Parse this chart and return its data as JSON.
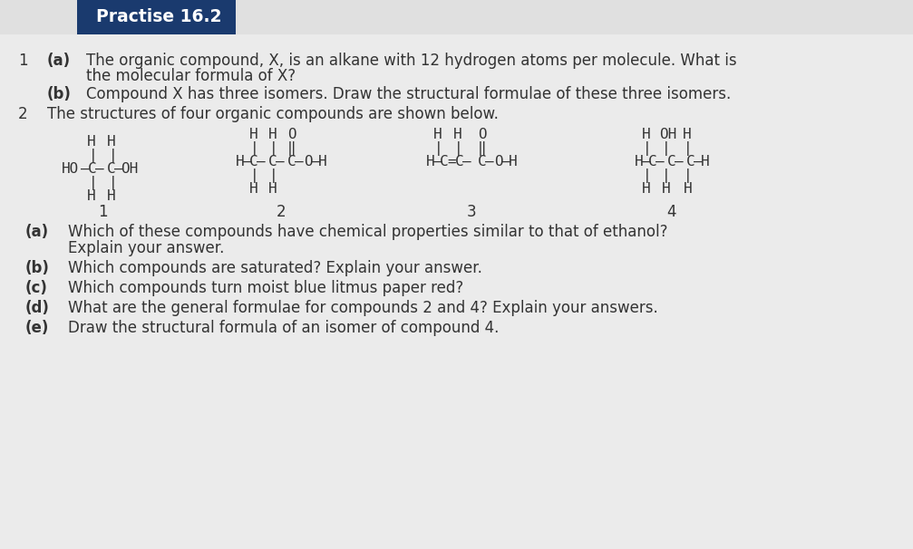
{
  "bg_color": "#e0e0e0",
  "header_bg": "#1a3a6e",
  "header_text": "Practise 16.2",
  "header_text_color": "#ffffff",
  "body_bg": "#e8e8e8",
  "text_color": "#333333",
  "q1_num": "1",
  "q1a_label": "(a)",
  "q1a_text_line1": "The organic compound, X, is an alkane with 12 hydrogen atoms per molecule. What is",
  "q1a_text_line2": "the molecular formula of X?",
  "q1b_label": "(b)",
  "q1b_text": "Compound X has three isomers. Draw the structural formulae of these three isomers.",
  "q2_num": "2",
  "q2_text": "The structures of four organic compounds are shown below.",
  "qa_label": "(a)",
  "qa_text_line1": "Which of these compounds have chemical properties similar to that of ethanol?",
  "qa_text_line2": "Explain your answer.",
  "qb_label": "(b)",
  "qb_text": "Which compounds are saturated? Explain your answer.",
  "qc_label": "(c)",
  "qc_text": "Which compounds turn moist blue litmus paper red?",
  "qd_label": "(d)",
  "qd_text": "What are the general formulae for compounds 2 and 4? Explain your answers.",
  "qe_label": "(e)",
  "qe_text": "Draw the structural formula of an isomer of compound 4.",
  "chem_color": "#333333"
}
